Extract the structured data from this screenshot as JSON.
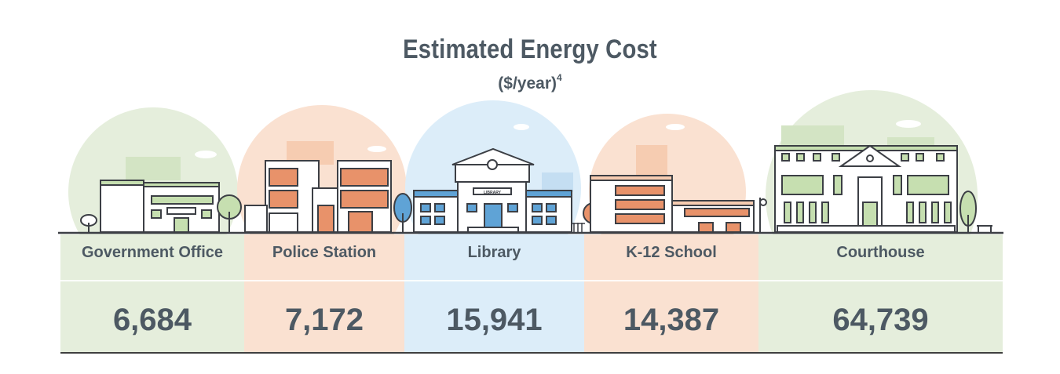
{
  "title": "Estimated Energy Cost",
  "subtitle": "($/year)",
  "subtitle_footnote": "4",
  "colors": {
    "green": "#e5eedc",
    "peach": "#fae1d1",
    "blue": "#dcedf9",
    "text": "#4d5963",
    "outline": "#3c3f45",
    "orange": "#e8926a",
    "light_green": "#c6dfb0",
    "blue_bldg": "#5fa3d6"
  },
  "building_sign": "LIBRARY",
  "chart_data": {
    "type": "table",
    "title": "Estimated Energy Cost",
    "subtitle": "($/year)",
    "categories": [
      "Government Office",
      "Police Station",
      "Library",
      "K-12 School",
      "Courthouse"
    ],
    "values": [
      6684,
      7172,
      15941,
      14387,
      64739
    ],
    "value_labels": [
      "6,684",
      "7,172",
      "15,941",
      "14,387",
      "64,739"
    ]
  }
}
